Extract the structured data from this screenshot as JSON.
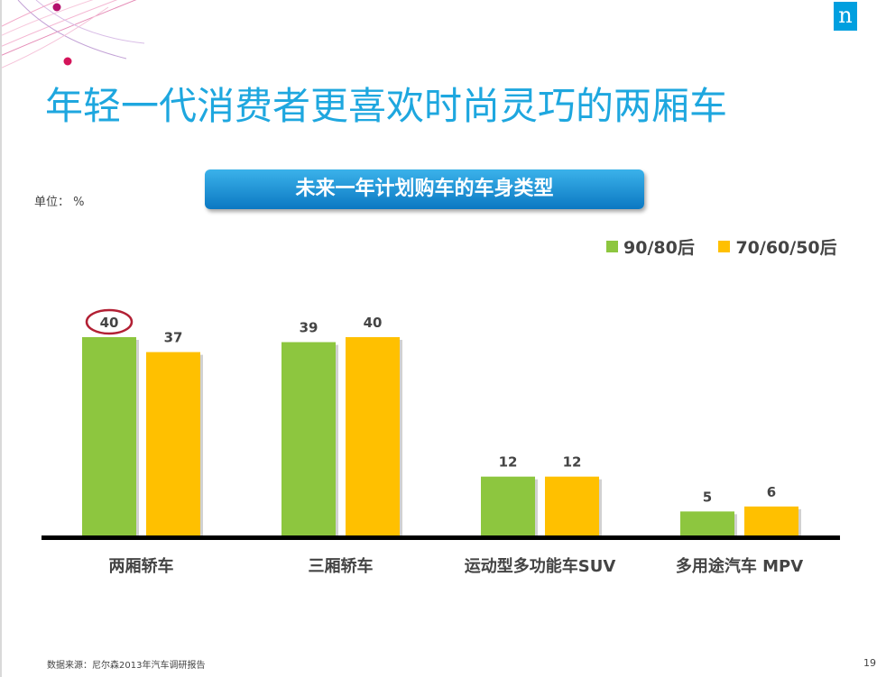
{
  "slide": {
    "title": "年轻一代消费者更喜欢时尚灵巧的两厢车",
    "logo": "n",
    "unit": "单位： %",
    "source": "数据来源：尼尔森2013年汽车调研报告",
    "page_number": "19",
    "highlight_color": "#b22034"
  },
  "chart_data": {
    "type": "bar",
    "title": "未来一年计划购车的车身类型",
    "categories": [
      "两厢轿车",
      "三厢轿车",
      "运动型多功能车SUV",
      "多用途汽车 MPV"
    ],
    "series": [
      {
        "name": "90/80后",
        "color": "#8dc63f",
        "values": [
          40,
          39,
          12,
          5
        ]
      },
      {
        "name": "70/60/50后",
        "color": "#ffc000",
        "values": [
          37,
          40,
          12,
          6
        ]
      }
    ],
    "data_labels": [
      [
        "40",
        "39",
        "12",
        "5"
      ],
      [
        "37",
        "40",
        "12",
        "6"
      ]
    ],
    "highlighted_value": {
      "series": 0,
      "category": 0
    },
    "ylim": [
      0,
      40
    ],
    "legend_position": "top-right",
    "grid": false
  }
}
